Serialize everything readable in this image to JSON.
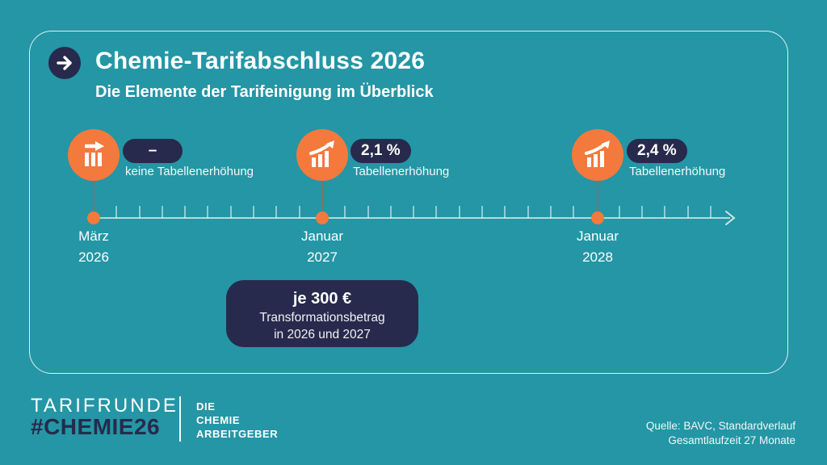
{
  "colors": {
    "bg": "#2496a5",
    "navy": "#272a4c",
    "orange": "#f4793c",
    "line": "#d2e6e8",
    "connector": "#787767"
  },
  "header": {
    "title": "Chemie-Tarifabschluss 2026",
    "subtitle": "Die Elemente der Tarifeinigung im Überblick"
  },
  "milestones": [
    {
      "badge": "–",
      "label": "keine Tabellenerhöhung",
      "icon": "flat-chart-icon",
      "month": "März",
      "year": "2026"
    },
    {
      "badge": "2,1 %",
      "label": "Tabellenerhöhung",
      "icon": "rising-chart-icon",
      "month": "Januar",
      "year": "2027"
    },
    {
      "badge": "2,4 %",
      "label": "Tabellenerhöhung",
      "icon": "rising-chart-icon",
      "month": "Januar",
      "year": "2028"
    }
  ],
  "timeline": {
    "total_months": 27,
    "dot_months": [
      0,
      10,
      22
    ]
  },
  "info_box": {
    "line1": "je 300 €",
    "line2": "Transformationsbetrag",
    "line3": "in 2026 und 2027"
  },
  "footer": {
    "campaign_line1": "TARIFRUNDE",
    "campaign_line2": "#CHEMIE26",
    "logo_line1": "DIE",
    "logo_line2": "CHEMIE",
    "logo_line3": "ARBEITGEBER",
    "source_line1": "Quelle: BAVC, Standardverlauf",
    "source_line2": "Gesamtlaufzeit 27 Monate"
  }
}
